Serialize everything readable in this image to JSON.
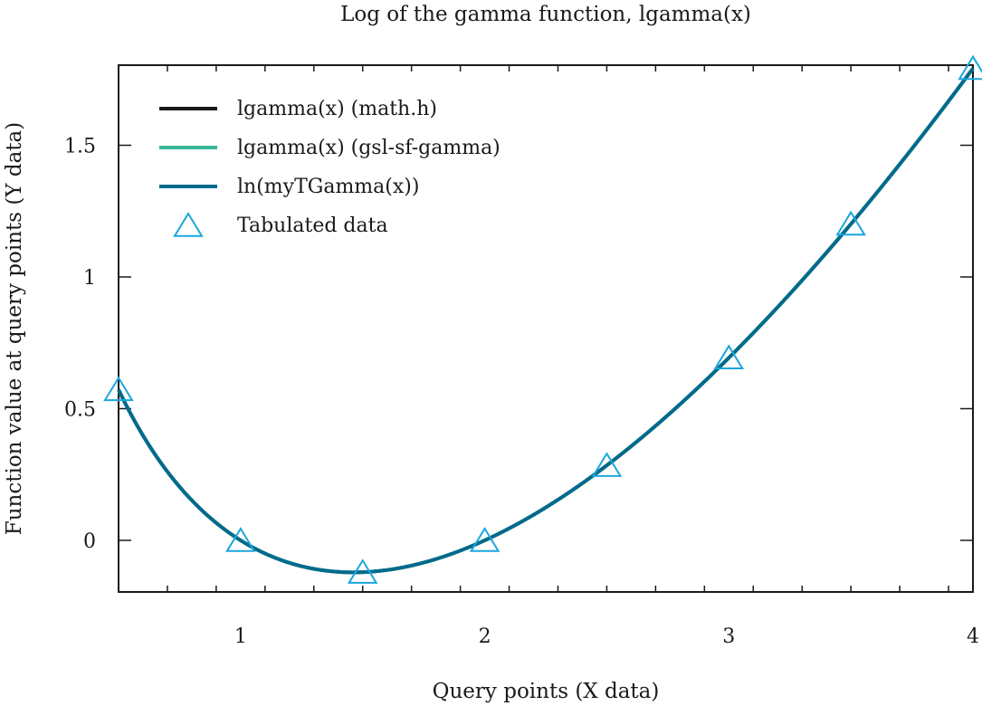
{
  "chart_data": {
    "type": "line",
    "title": "Log of the gamma function, lgamma(x)",
    "xlabel": "Query points (X data)",
    "ylabel": "Function value at query points (Y data)",
    "xlim": [
      0.5,
      4.0
    ],
    "ylim": [
      -0.2,
      1.8
    ],
    "xticks": [
      1,
      2,
      3,
      4
    ],
    "xtick_labels": [
      "1",
      "2",
      "3",
      "4"
    ],
    "yticks": [
      0,
      0.5,
      1,
      1.5
    ],
    "ytick_labels": [
      "0",
      "0.5",
      "1",
      "1.5"
    ],
    "x_minor_step": 0.2,
    "y_minor_step": 0.5,
    "grid": false,
    "legend_position": "top-left",
    "series": [
      {
        "name": "lgamma(x) (math.h)",
        "style": "line",
        "color": "#1a1a1a",
        "function": "lgamma",
        "x_range": [
          0.5,
          4.0
        ]
      },
      {
        "name": "lgamma(x) (gsl-sf-gamma)",
        "style": "line",
        "color": "#3bb89a",
        "function": "lgamma",
        "x_range": [
          0.5,
          4.0
        ]
      },
      {
        "name": "ln(myTGamma(x))",
        "style": "line",
        "color": "#006a8e",
        "function": "lgamma",
        "x_range": [
          0.5,
          4.0
        ]
      },
      {
        "name": "Tabulated data",
        "style": "marker",
        "marker": "triangle",
        "color": "#1aa6dd",
        "x": [
          0.5,
          1.0,
          1.5,
          2.0,
          2.5,
          3.0,
          3.5,
          4.0
        ],
        "y": [
          0.5724,
          0.0,
          -0.1208,
          0.0,
          0.2847,
          0.6931,
          1.201,
          1.7918
        ]
      }
    ]
  }
}
